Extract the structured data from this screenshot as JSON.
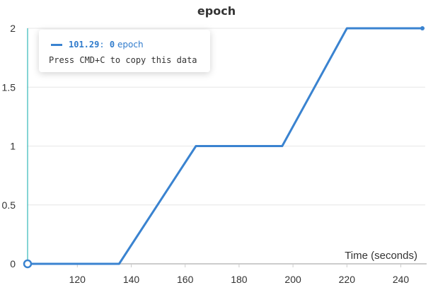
{
  "chart_data": {
    "type": "line",
    "title": "epoch",
    "xlabel": "Time (seconds)",
    "ylabel": "",
    "xlim": [
      101.29,
      248
    ],
    "ylim": [
      0,
      2
    ],
    "xticks": [
      120,
      140,
      160,
      180,
      200,
      220,
      240
    ],
    "yticks": [
      0,
      0.5,
      1,
      1.5,
      2
    ],
    "ytick_labels": [
      "0",
      "0.5",
      "1",
      "1.5",
      "2"
    ],
    "grid": true,
    "series": [
      {
        "name": "epoch",
        "color": "#3a83d0",
        "x": [
          101.29,
          135.5,
          164,
          196,
          220,
          248
        ],
        "y": [
          0,
          0,
          1,
          1,
          2,
          2
        ]
      }
    ],
    "hover": {
      "x": 101.29,
      "y": 0,
      "cursor_color": "#5cc6c6"
    }
  },
  "tooltip": {
    "x_value": "101.29",
    "separator": ": ",
    "y_value": "0",
    "series_name": "epoch",
    "hint": "Press CMD+C to copy this data"
  }
}
